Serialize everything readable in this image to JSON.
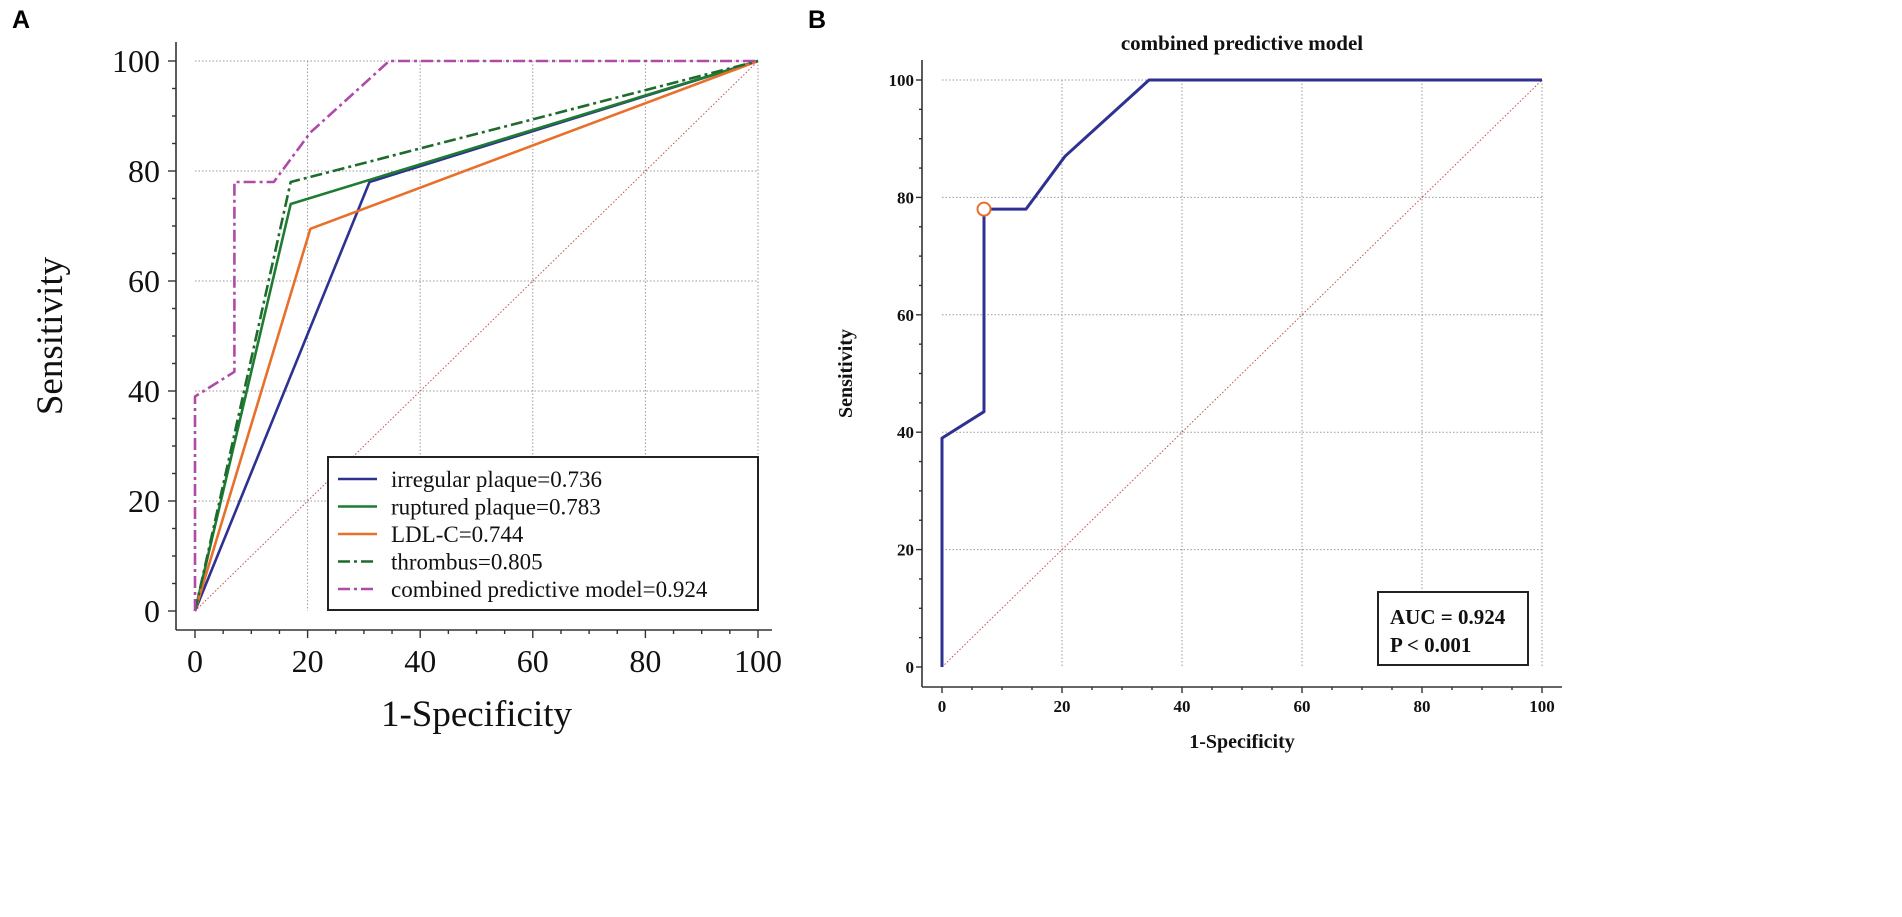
{
  "chart_data": [
    {
      "panel": "A",
      "type": "line",
      "title": "",
      "xlabel": "1-Specificity",
      "ylabel": "Sensitivity",
      "xlim": [
        0,
        100
      ],
      "ylim": [
        0,
        100
      ],
      "xticks": [
        "0",
        "20",
        "40",
        "60",
        "80",
        "100"
      ],
      "yticks": [
        "0",
        "20",
        "40",
        "60",
        "80",
        "100"
      ],
      "grid": true,
      "reference_line": true,
      "legend_position": "bottom-right",
      "series": [
        {
          "name": "irregular plaque=0.736",
          "color": "#2e3192",
          "style": "solid",
          "x": [
            0,
            31,
            100
          ],
          "y": [
            0,
            78,
            100
          ]
        },
        {
          "name": "ruptured plaque=0.783",
          "color": "#1e7b32",
          "style": "solid",
          "x": [
            0,
            17,
            100
          ],
          "y": [
            0,
            74,
            100
          ]
        },
        {
          "name": "LDL-C=0.744",
          "color": "#e8702a",
          "style": "solid",
          "x": [
            0,
            20.5,
            100
          ],
          "y": [
            0,
            69.5,
            100
          ]
        },
        {
          "name": "thrombus=0.805",
          "color": "#1e6b2e",
          "style": "dashdot",
          "x": [
            0,
            17,
            100
          ],
          "y": [
            0,
            78,
            100
          ]
        },
        {
          "name": "combined predictive model=0.924",
          "color": "#b04aa8",
          "style": "dashdot",
          "x": [
            0,
            0,
            7,
            7,
            14,
            20.5,
            34.5,
            100
          ],
          "y": [
            0,
            39,
            43.5,
            78,
            78,
            87,
            100,
            100
          ]
        }
      ]
    },
    {
      "panel": "B",
      "type": "line",
      "title": "combined predictive model",
      "xlabel": "1-Specificity",
      "ylabel": "Sensitivity",
      "xlim": [
        0,
        100
      ],
      "ylim": [
        0,
        100
      ],
      "xticks": [
        "0",
        "20",
        "40",
        "60",
        "80",
        "100"
      ],
      "yticks": [
        "0",
        "20",
        "40",
        "60",
        "80",
        "100"
      ],
      "grid": true,
      "reference_line": true,
      "legend_position": "bottom-right",
      "series": [
        {
          "name": "combined predictive model",
          "color": "#2e3192",
          "style": "solid",
          "x": [
            0,
            0,
            7,
            7,
            14,
            20.5,
            34.5,
            100
          ],
          "y": [
            0,
            39,
            43.5,
            78,
            78,
            87,
            100,
            100
          ]
        }
      ],
      "marker": {
        "x": 7,
        "y": 78,
        "color": "#e8702a"
      },
      "annotation": {
        "auc": "AUC = 0.924",
        "p": "P < 0.001"
      }
    }
  ],
  "panel_labels": {
    "a": "A",
    "b": "B"
  }
}
